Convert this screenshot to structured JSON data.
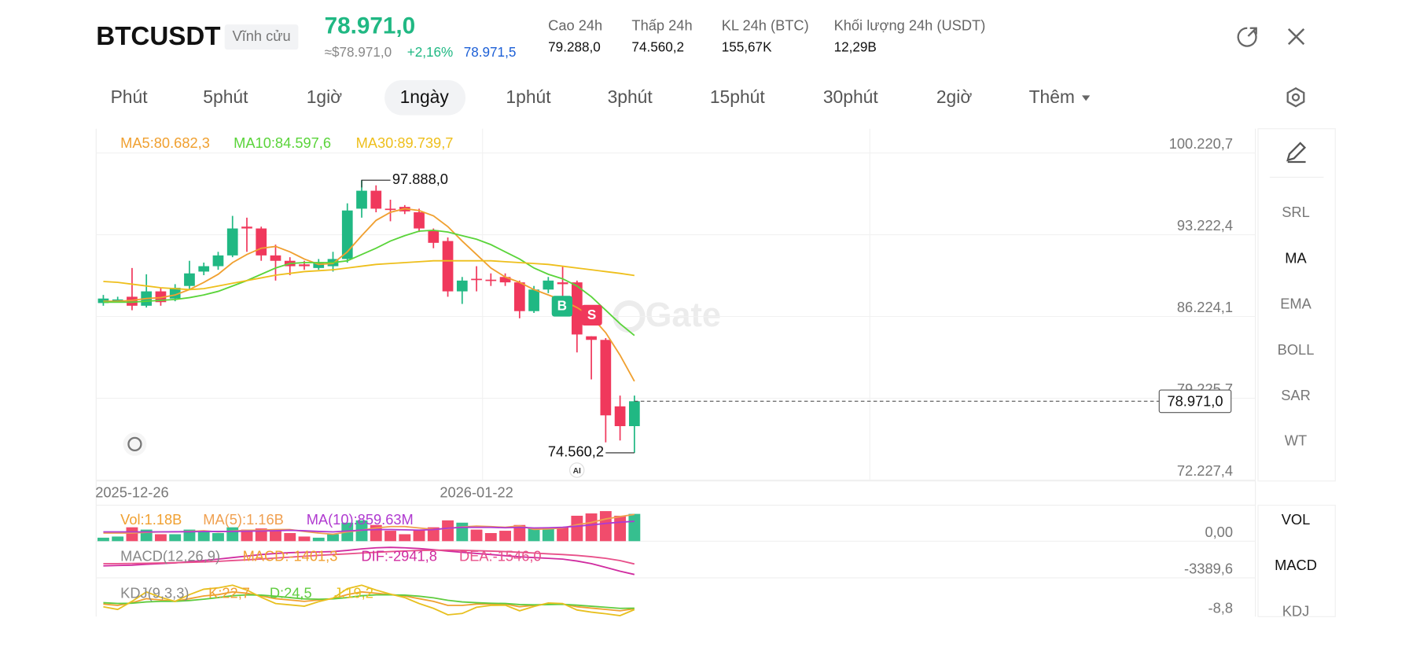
{
  "header": {
    "symbol": "BTCUSDT",
    "contract": "Vĩnh cửu",
    "price": "78.971,0",
    "price_usd": "≈$78.971,0",
    "change": "+2,16%",
    "mark_price": "78.971,5",
    "stats": [
      {
        "label": "Cao 24h",
        "value": "79.288,0"
      },
      {
        "label": "Thấp 24h",
        "value": "74.560,2"
      },
      {
        "label": "KL 24h (BTC)",
        "value": "155,67K"
      },
      {
        "label": "Khối lượng 24h (USDT)",
        "value": "12,29B"
      }
    ]
  },
  "tabs": [
    "Phút",
    "5phút",
    "1giờ",
    "1ngày",
    "1phút",
    "3phút",
    "15phút",
    "30phút",
    "2giờ",
    "Thêm"
  ],
  "indicators": [
    "SRL",
    "MA",
    "EMA",
    "BOLL",
    "SAR",
    "WT"
  ],
  "sub_indicators": [
    "VOL",
    "MACD",
    "KDJ"
  ],
  "watermark": "Gate",
  "buy": "B",
  "sell": "S",
  "ai": "AI",
  "chart_data": [
    {
      "type": "candlestick",
      "up_color": "#20b883",
      "down_color": "#f0385c",
      "categories": [
        null,
        null,
        "2025-12-26",
        null,
        null,
        null,
        null,
        null,
        null,
        null,
        null,
        null,
        null,
        null,
        null,
        null,
        null,
        null,
        null,
        null,
        null,
        null,
        null,
        null,
        null,
        null,
        "2026-01-22",
        null,
        null,
        null,
        null,
        null,
        null,
        null,
        null,
        null,
        null,
        null
      ],
      "open": [
        87377,
        87608,
        87916,
        87147,
        88377,
        87762,
        88839,
        90069,
        90531,
        91453,
        93914,
        93760,
        91453,
        90992,
        90685,
        90377,
        90531,
        91146,
        95453,
        96990,
        95453,
        95606,
        95145,
        93607,
        92684,
        88377,
        89454,
        89377,
        89608,
        89147,
        86685,
        88531,
        89147,
        89147,
        84532,
        84224,
        78534,
        76841
      ],
      "high": [
        88070,
        87916,
        90377,
        89839,
        88685,
        88993,
        90992,
        90838,
        91761,
        94837,
        94684,
        93914,
        92377,
        91300,
        90992,
        91146,
        91761,
        95914,
        97888,
        97453,
        96222,
        95760,
        95453,
        93760,
        92991,
        89608,
        90531,
        89915,
        89915,
        89300,
        88839,
        89608,
        90531,
        89300,
        84532,
        84378,
        79456,
        79456
      ],
      "low": [
        87147,
        87454,
        86762,
        86993,
        87147,
        87531,
        88531,
        89762,
        90223,
        91300,
        91761,
        90992,
        89300,
        89762,
        90223,
        90223,
        90069,
        90838,
        94684,
        95145,
        94376,
        94991,
        93453,
        92069,
        87916,
        87301,
        88377,
        88839,
        88839,
        86070,
        86531,
        88224,
        87916,
        83147,
        80841,
        75457,
        75611,
        74560.2
      ],
      "close": [
        87762,
        87685,
        87147,
        88377,
        87454,
        88685,
        89915,
        90531,
        91453,
        93760,
        93760,
        91453,
        90992,
        90531,
        90531,
        90838,
        91146,
        95299,
        96990,
        95453,
        95376,
        95222,
        93760,
        92531,
        88377,
        89300,
        89377,
        89300,
        89147,
        86685,
        88531,
        89300,
        88993,
        84686,
        84224,
        77764,
        76841,
        78971.0
      ],
      "series": [
        {
          "name": "MA5:80.682,3",
          "color": "#f0a030",
          "values": [
            87531,
            87531,
            87608,
            87762,
            87839,
            88070,
            88531,
            89147,
            89839,
            90838,
            91531,
            92069,
            92223,
            91761,
            91146,
            90685,
            90762,
            91761,
            93145,
            94453,
            95145,
            95453,
            95299,
            94837,
            93914,
            92684,
            91531,
            90377,
            89608,
            89147,
            88531,
            88070,
            87608,
            86993,
            86224,
            84840,
            82917,
            80682.3
          ]
        },
        {
          "name": "MA10:84.597,6",
          "color": "#5ad43a",
          "values": [
            87454,
            87454,
            87454,
            87531,
            87608,
            87685,
            87839,
            88070,
            88377,
            88839,
            89300,
            89839,
            90377,
            90762,
            90838,
            90838,
            90838,
            90992,
            91531,
            92069,
            92684,
            93145,
            93530,
            93607,
            93453,
            93145,
            92838,
            92377,
            91761,
            91146,
            90377,
            89839,
            89454,
            88839,
            87916,
            86762,
            85609,
            84597.6
          ]
        },
        {
          "name": "MA30:89.739,7",
          "color": "#eebf1c",
          "values": [
            89224,
            89147,
            88993,
            88839,
            88685,
            88608,
            88531,
            88608,
            88839,
            89070,
            89300,
            89531,
            89762,
            89915,
            90069,
            90146,
            90223,
            90377,
            90531,
            90685,
            90762,
            90838,
            90915,
            90992,
            90992,
            90992,
            90992,
            90992,
            90915,
            90838,
            90762,
            90685,
            90531,
            90377,
            90223,
            90069,
            89915,
            89739.7
          ]
        }
      ],
      "ylim": [
        72150,
        102297
      ],
      "yticks": [
        {
          "value": 100220.7,
          "label": "100.220,7"
        },
        {
          "value": 93222.4,
          "label": "93.222,4"
        },
        {
          "value": 86224.1,
          "label": "86.224,1"
        },
        {
          "value": 79225.7,
          "label": "79.225,7"
        },
        {
          "value": 72227.4,
          "label": "72.227,4"
        }
      ],
      "current": {
        "value": 78971.0,
        "label": "78.971,0"
      },
      "high_label": {
        "value": 97888.0,
        "label": "97.888,0"
      },
      "low_label": {
        "value": 74560.2,
        "label": "74.560,2"
      }
    },
    {
      "type": "bar",
      "label": "Vol:1.18B",
      "color": "#f0a030",
      "values": [
        0.15,
        0.2,
        0.6,
        0.5,
        0.3,
        0.3,
        0.5,
        0.4,
        0.35,
        0.6,
        0.5,
        0.55,
        0.5,
        0.35,
        0.2,
        0.15,
        0.3,
        0.8,
        0.9,
        0.7,
        0.45,
        0.3,
        0.5,
        0.6,
        0.9,
        0.8,
        0.5,
        0.35,
        0.45,
        0.7,
        0.55,
        0.6,
        0.6,
        1.1,
        1.2,
        1.3,
        1.1,
        1.18
      ],
      "series": [
        {
          "name": "MA(5):1.16B",
          "color": "#f0a050",
          "values": [
            0.35,
            0.35,
            0.35,
            0.38,
            0.4,
            0.4,
            0.42,
            0.45,
            0.4,
            0.43,
            0.47,
            0.48,
            0.5,
            0.5,
            0.42,
            0.35,
            0.3,
            0.4,
            0.47,
            0.57,
            0.63,
            0.63,
            0.57,
            0.51,
            0.55,
            0.62,
            0.65,
            0.63,
            0.6,
            0.66,
            0.51,
            0.53,
            0.57,
            0.71,
            0.81,
            0.96,
            1.06,
            1.16
          ]
        },
        {
          "name": "MA(10):859.63M",
          "color": "#b03ad0",
          "values": [
            0.4,
            0.4,
            0.4,
            0.4,
            0.4,
            0.41,
            0.41,
            0.42,
            0.42,
            0.42,
            0.43,
            0.44,
            0.45,
            0.47,
            0.45,
            0.42,
            0.4,
            0.44,
            0.48,
            0.5,
            0.5,
            0.49,
            0.48,
            0.5,
            0.56,
            0.6,
            0.6,
            0.6,
            0.58,
            0.6,
            0.57,
            0.58,
            0.6,
            0.65,
            0.7,
            0.77,
            0.82,
            0.85963
          ]
        }
      ],
      "ylim": [
        0,
        1.4
      ],
      "yticks": [
        {
          "value": 0,
          "label": "0,00"
        }
      ]
    },
    {
      "type": "line",
      "title": "MACD(12,26,9)",
      "macd_label": "MACD:-1401,3",
      "macd_color": "#f0a030",
      "series": [
        {
          "name": "DIF:-2941,8",
          "color": "#d02ca0",
          "values": [
            -1800,
            -1750,
            -1700,
            -1600,
            -1500,
            -1400,
            -1250,
            -1100,
            -900,
            -700,
            -500,
            -300,
            -150,
            -50,
            0,
            50,
            100,
            250,
            450,
            600,
            650,
            600,
            500,
            350,
            150,
            0,
            -150,
            -300,
            -450,
            -600,
            -700,
            -800,
            -900,
            -1150,
            -1500,
            -2000,
            -2500,
            -2941.8
          ]
        },
        {
          "name": "DEA:-1546,0",
          "color": "#e8508a",
          "values": [
            -1500,
            -1500,
            -1480,
            -1450,
            -1420,
            -1380,
            -1330,
            -1270,
            -1200,
            -1100,
            -1000,
            -880,
            -760,
            -640,
            -520,
            -410,
            -300,
            -200,
            -100,
            0,
            100,
            180,
            240,
            270,
            280,
            260,
            220,
            160,
            90,
            0,
            -100,
            -200,
            -300,
            -420,
            -580,
            -800,
            -1100,
            -1546.0
          ]
        }
      ],
      "ylim": [
        -4000,
        1000
      ],
      "yticks": [
        {
          "value": -3389.6,
          "label": "-3389,6"
        }
      ]
    },
    {
      "type": "line",
      "title": "KDJ(9,3,3)",
      "series": [
        {
          "name": "K:22,7",
          "color": "#f0a030",
          "values": [
            40,
            35,
            45,
            60,
            55,
            50,
            60,
            70,
            75,
            85,
            80,
            70,
            60,
            55,
            50,
            55,
            60,
            75,
            85,
            80,
            75,
            70,
            60,
            50,
            35,
            35,
            40,
            40,
            40,
            30,
            35,
            40,
            40,
            30,
            25,
            20,
            15,
            22.7
          ]
        },
        {
          "name": "D:24,5",
          "color": "#60cc40",
          "values": [
            45,
            42,
            43,
            48,
            50,
            50,
            53,
            58,
            64,
            71,
            74,
            73,
            69,
            64,
            59,
            58,
            59,
            64,
            71,
            74,
            74,
            73,
            69,
            63,
            54,
            48,
            45,
            43,
            42,
            38,
            37,
            38,
            39,
            36,
            32,
            28,
            24,
            24.5
          ]
        },
        {
          "name": "J:19,2",
          "color": "#e8c020",
          "values": [
            30,
            20,
            50,
            85,
            65,
            50,
            75,
            95,
            100,
            110,
            92,
            65,
            42,
            37,
            32,
            49,
            62,
            97,
            110,
            92,
            77,
            64,
            42,
            24,
            0,
            5,
            28,
            35,
            36,
            15,
            31,
            44,
            42,
            18,
            10,
            4,
            -3,
            19.2
          ]
        }
      ],
      "ylim": [
        -20,
        120
      ],
      "yticks": [
        {
          "value": -8.8,
          "label": "-8,8"
        }
      ]
    }
  ]
}
